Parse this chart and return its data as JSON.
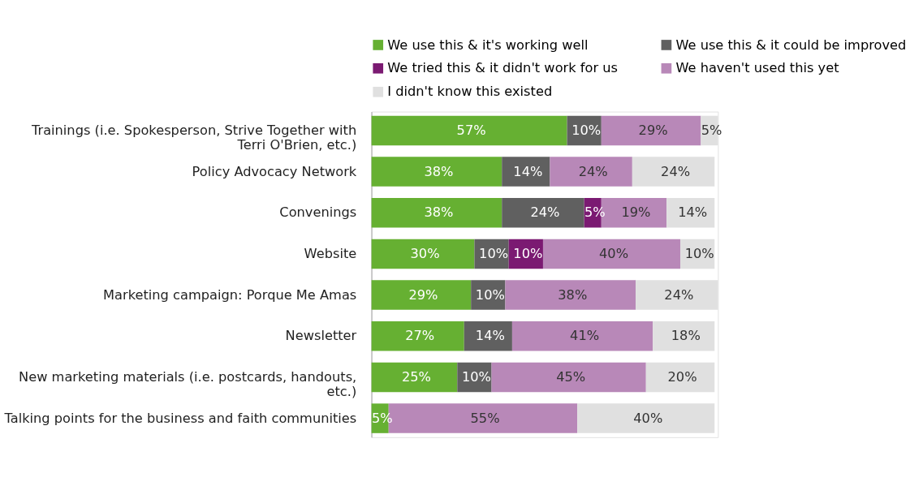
{
  "chart_data": {
    "type": "bar",
    "orientation": "horizontal",
    "stacked": true,
    "legend": "top",
    "categories": [
      "Trainings (i.e. Spokesperson, Strive Together with Terri O'Brien, etc.)",
      "Policy Advocacy Network",
      "Convenings",
      "Website",
      "Marketing campaign: Porque Me Amas",
      "Newsletter",
      "New marketing materials (i.e. postcards, handouts, etc.)",
      "Talking points for the business and faith communities"
    ],
    "series": [
      {
        "name": "We use this & it's working well",
        "color": "#66b032",
        "values": [
          57,
          38,
          38,
          30,
          29,
          27,
          25,
          5
        ],
        "value_labels": [
          "57%",
          "38%",
          "38%",
          "30%",
          "29%",
          "27%",
          "25%",
          "5%"
        ]
      },
      {
        "name": "We use this & it could be improved",
        "color": "#606060",
        "values": [
          10,
          14,
          24,
          10,
          10,
          14,
          10,
          null
        ],
        "value_labels": [
          "10%",
          "14%",
          "24%",
          "10%",
          "10%",
          "14%",
          "10%",
          null
        ]
      },
      {
        "name": "We tried this & it didn't work for us",
        "color": "#7b1a72",
        "values": [
          null,
          null,
          5,
          10,
          null,
          null,
          null,
          null
        ],
        "value_labels": [
          null,
          null,
          "5%",
          "10%",
          null,
          null,
          null,
          null
        ]
      },
      {
        "name": "We haven't used this  yet",
        "color": "#b888b8",
        "values": [
          29,
          24,
          19,
          40,
          38,
          41,
          45,
          55
        ],
        "value_labels": [
          "29%",
          "24%",
          "19%",
          "40%",
          "38%",
          "41%",
          "45%",
          "55%"
        ]
      },
      {
        "name": "I didn't know this existed",
        "color": "#e0e0e0",
        "values": [
          5,
          24,
          14,
          10,
          24,
          18,
          20,
          40
        ],
        "value_labels": [
          "5%",
          "24%",
          "14%",
          "10%",
          "24%",
          "18%",
          "20%",
          "40%"
        ]
      }
    ]
  }
}
